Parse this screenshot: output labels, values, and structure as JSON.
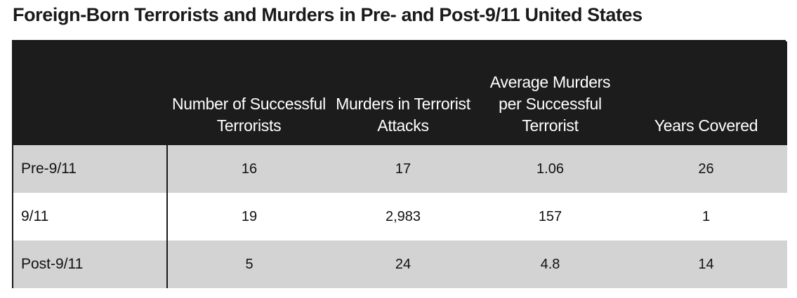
{
  "chart_data": {
    "type": "table",
    "title": "Foreign-Born Terrorists and Murders in Pre- and Post-9/11 United States",
    "columns": [
      "",
      "Number of Successful Terrorists",
      "Murders in Terrorist Attacks",
      "Average Murders per Successful Terrorist",
      "Years Covered"
    ],
    "rows": [
      {
        "label": "Pre-9/11",
        "values": [
          "16",
          "17",
          "1.06",
          "26"
        ]
      },
      {
        "label": "9/11",
        "values": [
          "19",
          "2,983",
          "157",
          "1"
        ]
      },
      {
        "label": "Post-9/11",
        "values": [
          "5",
          "24",
          "4.8",
          "14"
        ]
      }
    ]
  },
  "colors": {
    "header_bg": "#1c1c1c",
    "header_text": "#ffffff",
    "shaded_row": "#d3d3d3",
    "plain_row": "#ffffff"
  }
}
